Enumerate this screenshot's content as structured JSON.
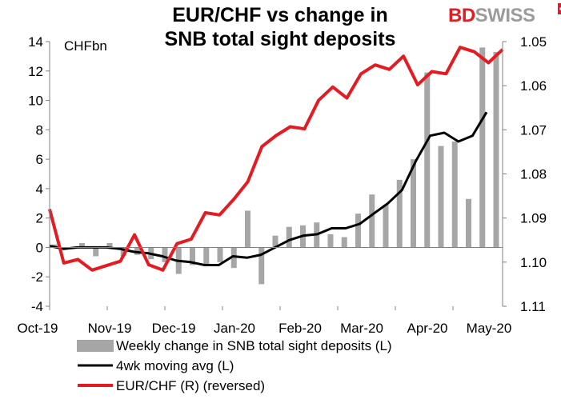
{
  "title_line1": "EUR/CHF vs change in",
  "title_line2": "SNB total sight deposits",
  "logo": {
    "part1": "BD",
    "part2": "SWISS"
  },
  "chart_data": {
    "type": "bar",
    "title": "EUR/CHF vs change in SNB total sight deposits",
    "ylabel_left": "CHFbn",
    "ylim_left": [
      -4,
      14
    ],
    "ylim_right": [
      1.11,
      1.05
    ],
    "y_ticks_left": [
      "14",
      "12",
      "10",
      "8",
      "6",
      "4",
      "2",
      "0",
      "-2",
      "-4"
    ],
    "y_ticks_right": [
      "1.05",
      "1.06",
      "1.07",
      "1.08",
      "1.09",
      "1.10",
      "1.11"
    ],
    "x_ticks": [
      "Oct-19",
      "Nov-19",
      "Dec-19",
      "Jan-20",
      "Feb-20",
      "Mar-20",
      "Apr-20",
      "May-20"
    ],
    "legend": [
      {
        "label": "Weekly change in SNB total sight deposits (L)",
        "color": "#a6a6a6",
        "kind": "bar"
      },
      {
        "label": "4wk moving avg (L)",
        "color": "#000000",
        "kind": "line"
      },
      {
        "label": "EUR/CHF (R) (reversed)",
        "color": "#e31b23",
        "kind": "line"
      }
    ],
    "weekly_change": [
      0.2,
      -0.1,
      0.3,
      -0.6,
      0.3,
      -0.6,
      -0.5,
      -0.8,
      -1.0,
      -1.8,
      -1.2,
      -1.2,
      -1.0,
      -1.4,
      2.5,
      -2.5,
      0.8,
      1.4,
      1.5,
      1.7,
      0.9,
      0.7,
      2.3,
      3.6,
      2.9,
      4.6,
      6.0,
      11.9,
      6.9,
      7.2,
      3.3,
      13.6,
      13.3
    ],
    "moving_avg": [
      0.1,
      -0.1,
      0.0,
      0.0,
      0.0,
      -0.1,
      -0.3,
      -0.4,
      -0.6,
      -0.9,
      -1.0,
      -1.2,
      -1.2,
      -0.6,
      -0.7,
      -0.5,
      0.0,
      0.5,
      0.8,
      0.9,
      1.3,
      1.3,
      1.6,
      2.3,
      3.0,
      3.9,
      5.9,
      7.6,
      7.8,
      7.2,
      7.6,
      9.2
    ],
    "eurchf": [
      1.088,
      1.1002,
      1.0994,
      1.1018,
      1.1008,
      1.0998,
      1.0938,
      1.1006,
      1.1018,
      1.0958,
      1.0948,
      1.0888,
      1.0893,
      1.0858,
      1.0818,
      1.0738,
      1.0713,
      1.0693,
      1.0698,
      1.0633,
      1.0603,
      1.0628,
      1.0573,
      1.0553,
      1.0563,
      1.0533,
      1.0598,
      1.0568,
      1.0573,
      1.0513,
      1.0523,
      1.0548,
      1.0518
    ]
  }
}
